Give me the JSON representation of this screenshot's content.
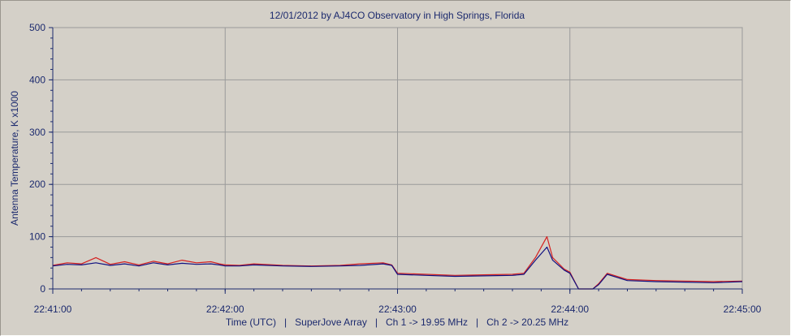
{
  "chart_data": {
    "type": "line",
    "title": "12/01/2012  by  AJ4CO Observatory  in  High Springs, Florida",
    "xlabel": "Time (UTC)   |   SuperJove Array   |   Ch 1 -> 19.95 MHz   |   Ch 2 -> 20.25 MHz",
    "ylabel": "Antenna Temperature, K x1000",
    "xlim": [
      "22:41:00",
      "22:45:00"
    ],
    "ylim": [
      0,
      500
    ],
    "x_ticks": [
      "22:41:00",
      "22:42:00",
      "22:43:00",
      "22:44:00",
      "22:45:00"
    ],
    "y_ticks": [
      "0",
      "100",
      "200",
      "300",
      "400",
      "500"
    ],
    "grid": true,
    "legend": "none",
    "series": [
      {
        "color": "#d42020",
        "points": [
          [
            "22:41:00",
            45
          ],
          [
            "22:41:05",
            50
          ],
          [
            "22:41:10",
            48
          ],
          [
            "22:41:15",
            60
          ],
          [
            "22:41:20",
            47
          ],
          [
            "22:41:25",
            52
          ],
          [
            "22:41:30",
            46
          ],
          [
            "22:41:35",
            53
          ],
          [
            "22:41:40",
            48
          ],
          [
            "22:41:45",
            55
          ],
          [
            "22:41:50",
            50
          ],
          [
            "22:41:55",
            52
          ],
          [
            "22:41:58",
            48
          ],
          [
            "22:42:00",
            46
          ],
          [
            "22:42:05",
            45
          ],
          [
            "22:42:10",
            48
          ],
          [
            "22:42:20",
            45
          ],
          [
            "22:42:30",
            44
          ],
          [
            "22:42:40",
            45
          ],
          [
            "22:42:47",
            48
          ],
          [
            "22:42:55",
            50
          ],
          [
            "22:42:58",
            46
          ],
          [
            "22:43:00",
            30
          ],
          [
            "22:43:10",
            28
          ],
          [
            "22:43:20",
            26
          ],
          [
            "22:43:30",
            27
          ],
          [
            "22:43:40",
            28
          ],
          [
            "22:43:44",
            30
          ],
          [
            "22:43:48",
            60
          ],
          [
            "22:43:52",
            100
          ],
          [
            "22:43:54",
            60
          ],
          [
            "22:43:58",
            38
          ],
          [
            "22:44:00",
            32
          ],
          [
            "22:44:03",
            0
          ],
          [
            "22:44:08",
            0
          ],
          [
            "22:44:10",
            10
          ],
          [
            "22:44:13",
            30
          ],
          [
            "22:44:20",
            18
          ],
          [
            "22:44:30",
            16
          ],
          [
            "22:44:40",
            15
          ],
          [
            "22:44:50",
            14
          ],
          [
            "22:45:00",
            15
          ]
        ]
      },
      {
        "color": "#101080",
        "points": [
          [
            "22:41:00",
            44
          ],
          [
            "22:41:05",
            47
          ],
          [
            "22:41:10",
            46
          ],
          [
            "22:41:15",
            50
          ],
          [
            "22:41:20",
            45
          ],
          [
            "22:41:25",
            48
          ],
          [
            "22:41:30",
            44
          ],
          [
            "22:41:35",
            50
          ],
          [
            "22:41:40",
            46
          ],
          [
            "22:41:45",
            49
          ],
          [
            "22:41:50",
            47
          ],
          [
            "22:41:55",
            48
          ],
          [
            "22:41:58",
            46
          ],
          [
            "22:42:00",
            44
          ],
          [
            "22:42:05",
            44
          ],
          [
            "22:42:10",
            46
          ],
          [
            "22:42:20",
            44
          ],
          [
            "22:42:30",
            43
          ],
          [
            "22:42:40",
            44
          ],
          [
            "22:42:47",
            45
          ],
          [
            "22:42:55",
            48
          ],
          [
            "22:42:58",
            45
          ],
          [
            "22:43:00",
            28
          ],
          [
            "22:43:10",
            26
          ],
          [
            "22:43:20",
            24
          ],
          [
            "22:43:30",
            25
          ],
          [
            "22:43:40",
            26
          ],
          [
            "22:43:44",
            28
          ],
          [
            "22:43:48",
            55
          ],
          [
            "22:43:52",
            80
          ],
          [
            "22:43:54",
            55
          ],
          [
            "22:43:58",
            36
          ],
          [
            "22:44:00",
            30
          ],
          [
            "22:44:03",
            0
          ],
          [
            "22:44:08",
            0
          ],
          [
            "22:44:10",
            8
          ],
          [
            "22:44:13",
            28
          ],
          [
            "22:44:20",
            16
          ],
          [
            "22:44:30",
            14
          ],
          [
            "22:44:40",
            13
          ],
          [
            "22:44:50",
            12
          ],
          [
            "22:45:00",
            14
          ]
        ]
      }
    ]
  }
}
